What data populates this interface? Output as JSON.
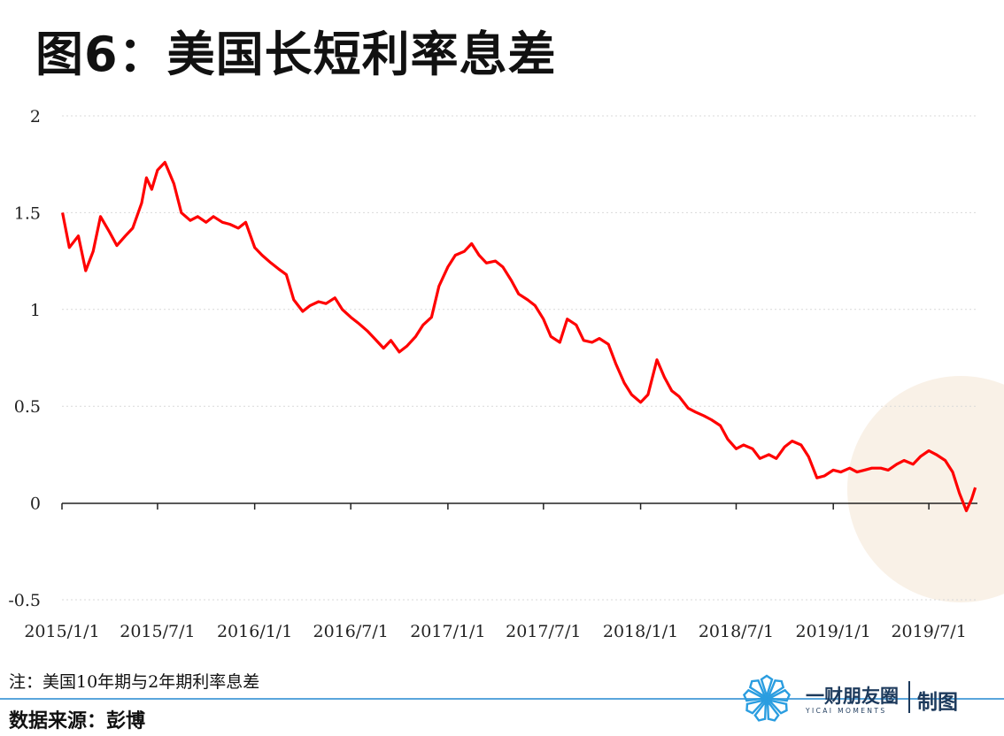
{
  "title": "图6：美国长短利率息差",
  "note": "注：美国10年期与2年期利率息差",
  "source": "数据来源：彭博",
  "brand": {
    "name": "一财朋友圈",
    "subtitle": "YICAI MOMENTS",
    "made_by": "制图",
    "logo_icon": "snowflake-logo-icon",
    "color": "#1d3a5c"
  },
  "chart_data": {
    "type": "line",
    "title": "图6：美国长短利率息差",
    "xlabel": "",
    "ylabel": "",
    "ylim": [
      -0.5,
      2
    ],
    "yticks": [
      2,
      1.5,
      1,
      0.5,
      0,
      -0.5
    ],
    "xticks": [
      "2015/1/1",
      "2015/7/1",
      "2016/1/1",
      "2016/7/1",
      "2017/1/1",
      "2017/7/1",
      "2018/1/1",
      "2018/7/1",
      "2019/1/1",
      "2019/7/1"
    ],
    "grid": true,
    "line_color": "#ff0000",
    "series": [
      {
        "x": [
          "2015/1/2",
          "2015/1/15",
          "2015/2/1",
          "2015/2/15",
          "2015/3/1",
          "2015/3/15",
          "2015/4/1",
          "2015/4/15",
          "2015/5/1",
          "2015/5/15",
          "2015/6/1",
          "2015/6/10",
          "2015/6/20",
          "2015/7/1",
          "2015/7/15",
          "2015/8/1",
          "2015/8/15",
          "2015/9/1",
          "2015/9/15",
          "2015/10/1",
          "2015/10/15",
          "2015/11/1",
          "2015/11/15",
          "2015/12/1",
          "2015/12/15",
          "2016/1/1",
          "2016/1/15",
          "2016/2/1",
          "2016/2/15",
          "2016/3/1",
          "2016/3/15",
          "2016/4/1",
          "2016/4/15",
          "2016/5/1",
          "2016/5/15",
          "2016/6/1",
          "2016/6/15",
          "2016/7/1",
          "2016/7/15",
          "2016/8/1",
          "2016/8/15",
          "2016/9/1",
          "2016/9/15",
          "2016/10/1",
          "2016/10/15",
          "2016/11/1",
          "2016/11/15",
          "2016/12/1",
          "2016/12/15",
          "2017/1/1",
          "2017/1/15",
          "2017/2/1",
          "2017/2/15",
          "2017/3/1",
          "2017/3/15",
          "2017/4/1",
          "2017/4/15",
          "2017/5/1",
          "2017/5/15",
          "2017/6/1",
          "2017/6/15",
          "2017/7/1",
          "2017/7/15",
          "2017/8/1",
          "2017/8/15",
          "2017/9/1",
          "2017/9/15",
          "2017/10/1",
          "2017/10/15",
          "2017/11/1",
          "2017/11/15",
          "2017/12/1",
          "2017/12/15",
          "2018/1/1",
          "2018/1/15",
          "2018/2/1",
          "2018/2/15",
          "2018/3/1",
          "2018/3/15",
          "2018/4/1",
          "2018/4/15",
          "2018/5/1",
          "2018/5/15",
          "2018/6/1",
          "2018/6/15",
          "2018/7/1",
          "2018/7/15",
          "2018/8/1",
          "2018/8/15",
          "2018/9/1",
          "2018/9/15",
          "2018/10/1",
          "2018/10/15",
          "2018/11/1",
          "2018/11/15",
          "2018/12/1",
          "2018/12/15",
          "2019/1/1",
          "2019/1/15",
          "2019/2/1",
          "2019/2/15",
          "2019/3/1",
          "2019/3/15",
          "2019/4/1",
          "2019/4/15",
          "2019/5/1",
          "2019/5/15",
          "2019/6/1",
          "2019/6/15",
          "2019/7/1",
          "2019/7/15",
          "2019/8/1",
          "2019/8/15",
          "2019/8/28",
          "2019/9/10",
          "2019/9/20",
          "2019/9/27"
        ],
        "values": [
          1.5,
          1.32,
          1.38,
          1.2,
          1.3,
          1.48,
          1.4,
          1.33,
          1.38,
          1.42,
          1.55,
          1.68,
          1.62,
          1.72,
          1.76,
          1.65,
          1.5,
          1.46,
          1.48,
          1.45,
          1.48,
          1.45,
          1.44,
          1.42,
          1.45,
          1.32,
          1.28,
          1.24,
          1.21,
          1.18,
          1.05,
          0.99,
          1.02,
          1.04,
          1.03,
          1.06,
          1.0,
          0.96,
          0.93,
          0.89,
          0.85,
          0.8,
          0.84,
          0.78,
          0.81,
          0.86,
          0.92,
          0.96,
          1.12,
          1.22,
          1.28,
          1.3,
          1.34,
          1.28,
          1.24,
          1.25,
          1.22,
          1.15,
          1.08,
          1.05,
          1.02,
          0.95,
          0.86,
          0.83,
          0.95,
          0.92,
          0.84,
          0.83,
          0.85,
          0.82,
          0.72,
          0.62,
          0.56,
          0.52,
          0.56,
          0.74,
          0.65,
          0.58,
          0.55,
          0.49,
          0.47,
          0.45,
          0.43,
          0.4,
          0.33,
          0.28,
          0.3,
          0.28,
          0.23,
          0.25,
          0.23,
          0.29,
          0.32,
          0.3,
          0.24,
          0.13,
          0.14,
          0.17,
          0.16,
          0.18,
          0.16,
          0.17,
          0.18,
          0.18,
          0.17,
          0.2,
          0.22,
          0.2,
          0.24,
          0.27,
          0.25,
          0.22,
          0.16,
          0.05,
          -0.04,
          0.02,
          0.08
        ]
      }
    ]
  }
}
